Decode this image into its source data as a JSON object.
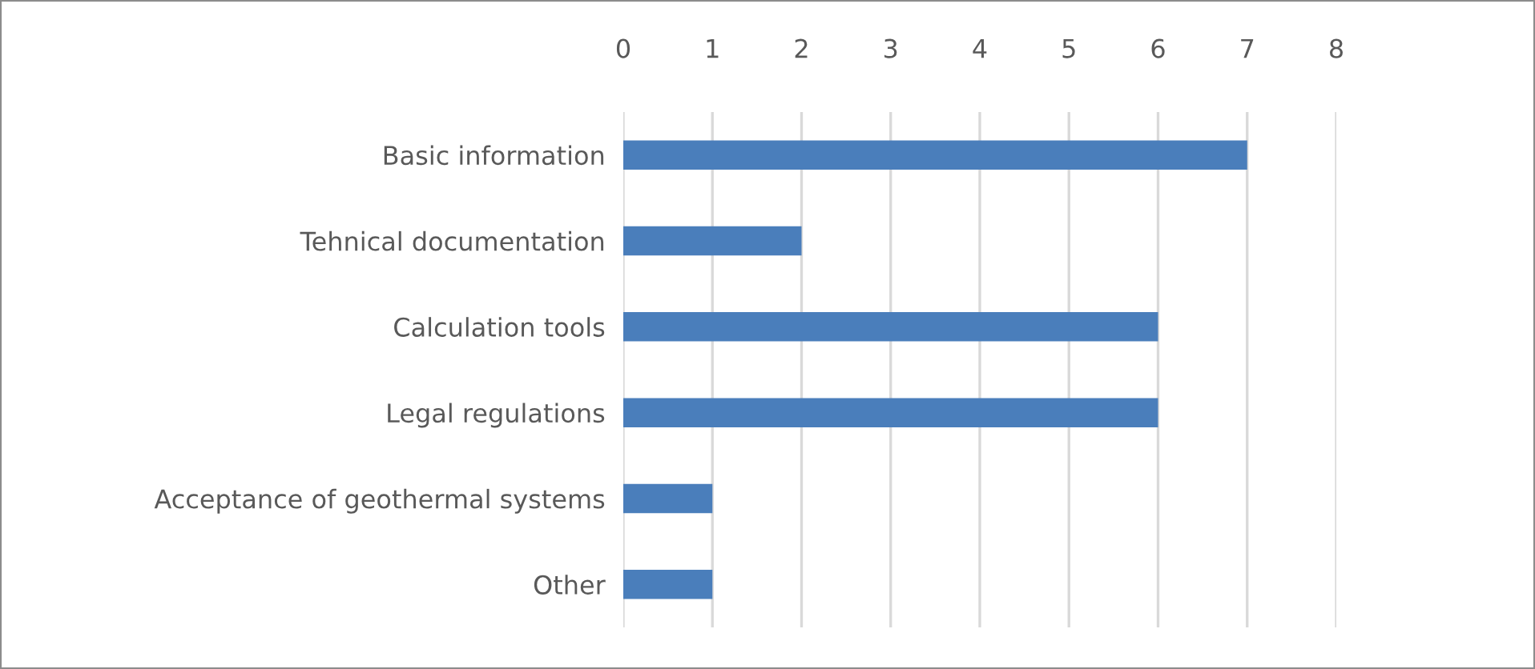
{
  "chart_data": {
    "type": "bar",
    "orientation": "horizontal",
    "categories": [
      "Basic information",
      "Tehnical documentation",
      "Calculation tools",
      "Legal regulations",
      "Acceptance of geothermal systems",
      "Other"
    ],
    "values": [
      7,
      2,
      6,
      6,
      1,
      1
    ],
    "color": "#4a7ebb",
    "xlim": [
      0,
      8
    ],
    "xticks": [
      0,
      1,
      2,
      3,
      4,
      5,
      6,
      7,
      8
    ],
    "grid": "x"
  }
}
